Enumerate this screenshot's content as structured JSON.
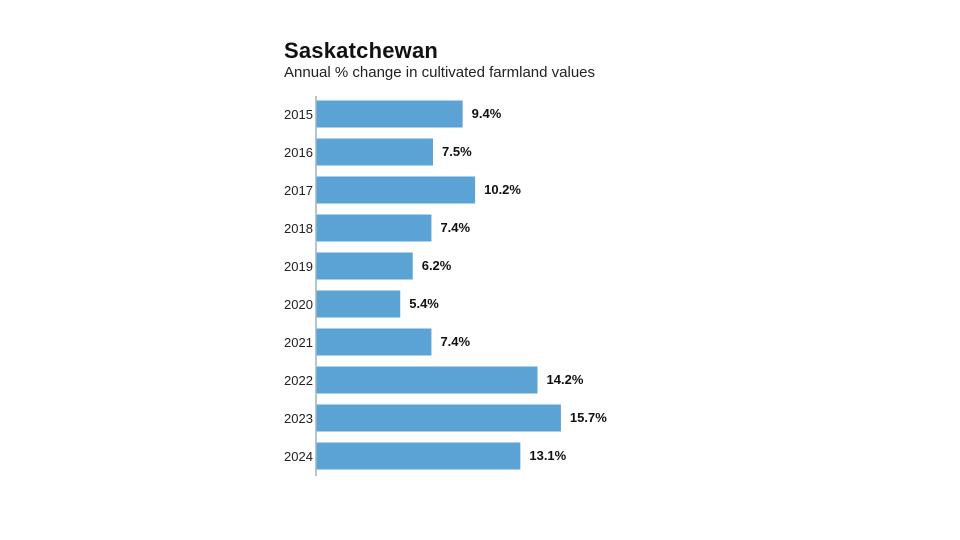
{
  "chart_data": {
    "type": "bar",
    "orientation": "horizontal",
    "title": "Saskatchewan",
    "subtitle": "Annual % change in cultivated farmland values",
    "categories": [
      "2015",
      "2016",
      "2017",
      "2018",
      "2019",
      "2020",
      "2021",
      "2022",
      "2023",
      "2024"
    ],
    "values": [
      9.4,
      7.5,
      10.2,
      7.4,
      6.2,
      5.4,
      7.4,
      14.2,
      15.7,
      13.1
    ],
    "value_labels": [
      "9.4%",
      "7.5%",
      "10.2%",
      "7.4%",
      "6.2%",
      "5.4%",
      "7.4%",
      "14.2%",
      "15.7%",
      "13.1%"
    ],
    "xlim": [
      0,
      16
    ],
    "grid": false,
    "bar_color": "#5ba3d4",
    "axis_color": "#9ab3c4"
  }
}
